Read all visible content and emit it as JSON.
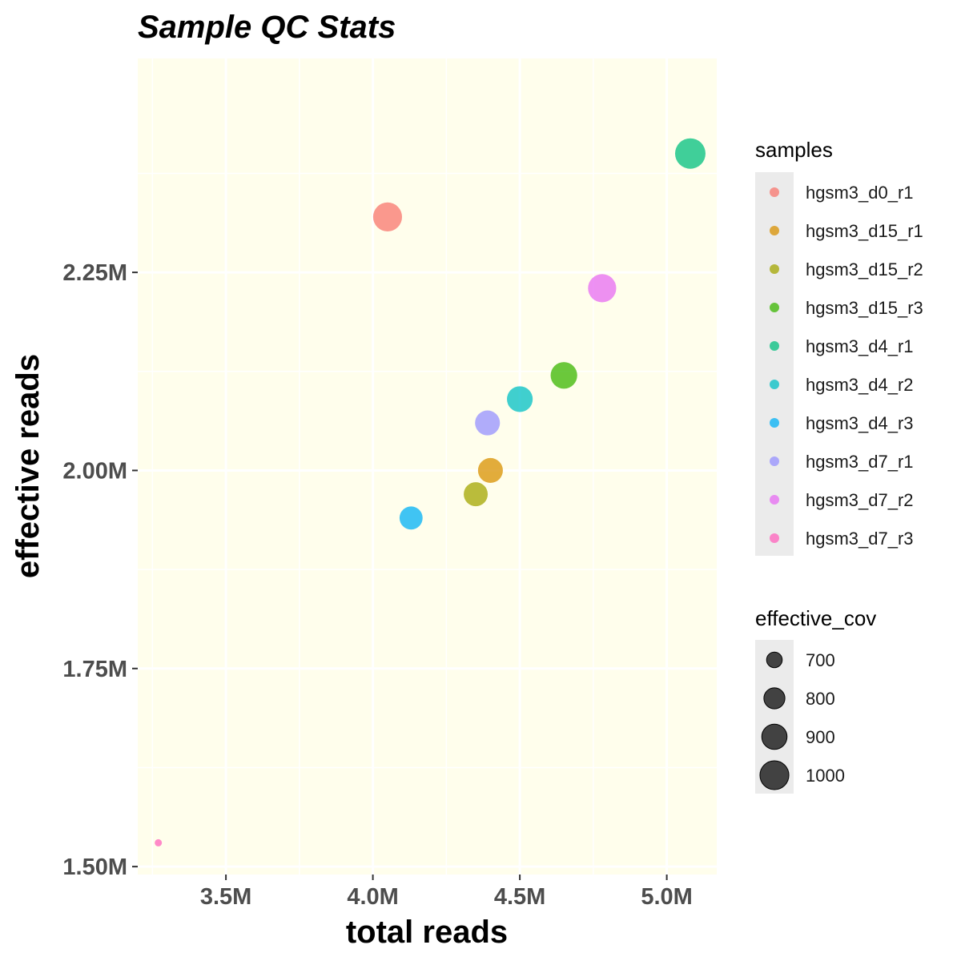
{
  "chart_data": {
    "type": "scatter",
    "title": "Sample QC Stats",
    "xlabel": "total reads",
    "ylabel": "effective reads",
    "xlim": [
      3.2,
      5.17
    ],
    "ylim": [
      1.49,
      2.52
    ],
    "x_ticks": [
      {
        "value": 3.5,
        "label": "3.5M"
      },
      {
        "value": 4.0,
        "label": "4.0M"
      },
      {
        "value": 4.5,
        "label": "4.5M"
      },
      {
        "value": 5.0,
        "label": "5.0M"
      }
    ],
    "y_ticks": [
      {
        "value": 1.5,
        "label": "1.50M"
      },
      {
        "value": 1.75,
        "label": "1.75M"
      },
      {
        "value": 2.0,
        "label": "2.00M"
      },
      {
        "value": 2.25,
        "label": "2.25M"
      }
    ],
    "grid": true,
    "panel_background": "#fffeec",
    "color_legend": {
      "title": "samples",
      "position": "right"
    },
    "size_legend": {
      "title": "effective_cov",
      "position": "right",
      "entries": [
        {
          "value": 700,
          "label": "700"
        },
        {
          "value": 800,
          "label": "800"
        },
        {
          "value": 900,
          "label": "900"
        },
        {
          "value": 1000,
          "label": "1000"
        }
      ]
    },
    "series": [
      {
        "name": "hgsm3_d0_r1",
        "color": "#F8766D",
        "x": 4.05,
        "y": 2.32,
        "size": 960
      },
      {
        "name": "hgsm3_d15_r1",
        "color": "#D89000",
        "x": 4.4,
        "y": 2.0,
        "size": 860
      },
      {
        "name": "hgsm3_d15_r2",
        "color": "#A3A500",
        "x": 4.35,
        "y": 1.97,
        "size": 840
      },
      {
        "name": "hgsm3_d15_r3",
        "color": "#39B600",
        "x": 4.65,
        "y": 2.12,
        "size": 900
      },
      {
        "name": "hgsm3_d4_r1",
        "color": "#00BF7D",
        "x": 5.08,
        "y": 2.4,
        "size": 1000
      },
      {
        "name": "hgsm3_d4_r2",
        "color": "#00BFC4",
        "x": 4.5,
        "y": 2.09,
        "size": 880
      },
      {
        "name": "hgsm3_d4_r3",
        "color": "#00B0F6",
        "x": 4.13,
        "y": 1.94,
        "size": 820
      },
      {
        "name": "hgsm3_d7_r1",
        "color": "#9590FF",
        "x": 4.39,
        "y": 2.06,
        "size": 860
      },
      {
        "name": "hgsm3_d7_r2",
        "color": "#E76BF3",
        "x": 4.78,
        "y": 2.23,
        "size": 940
      },
      {
        "name": "hgsm3_d7_r3",
        "color": "#FF62BC",
        "x": 3.27,
        "y": 1.53,
        "size": 600
      }
    ]
  }
}
